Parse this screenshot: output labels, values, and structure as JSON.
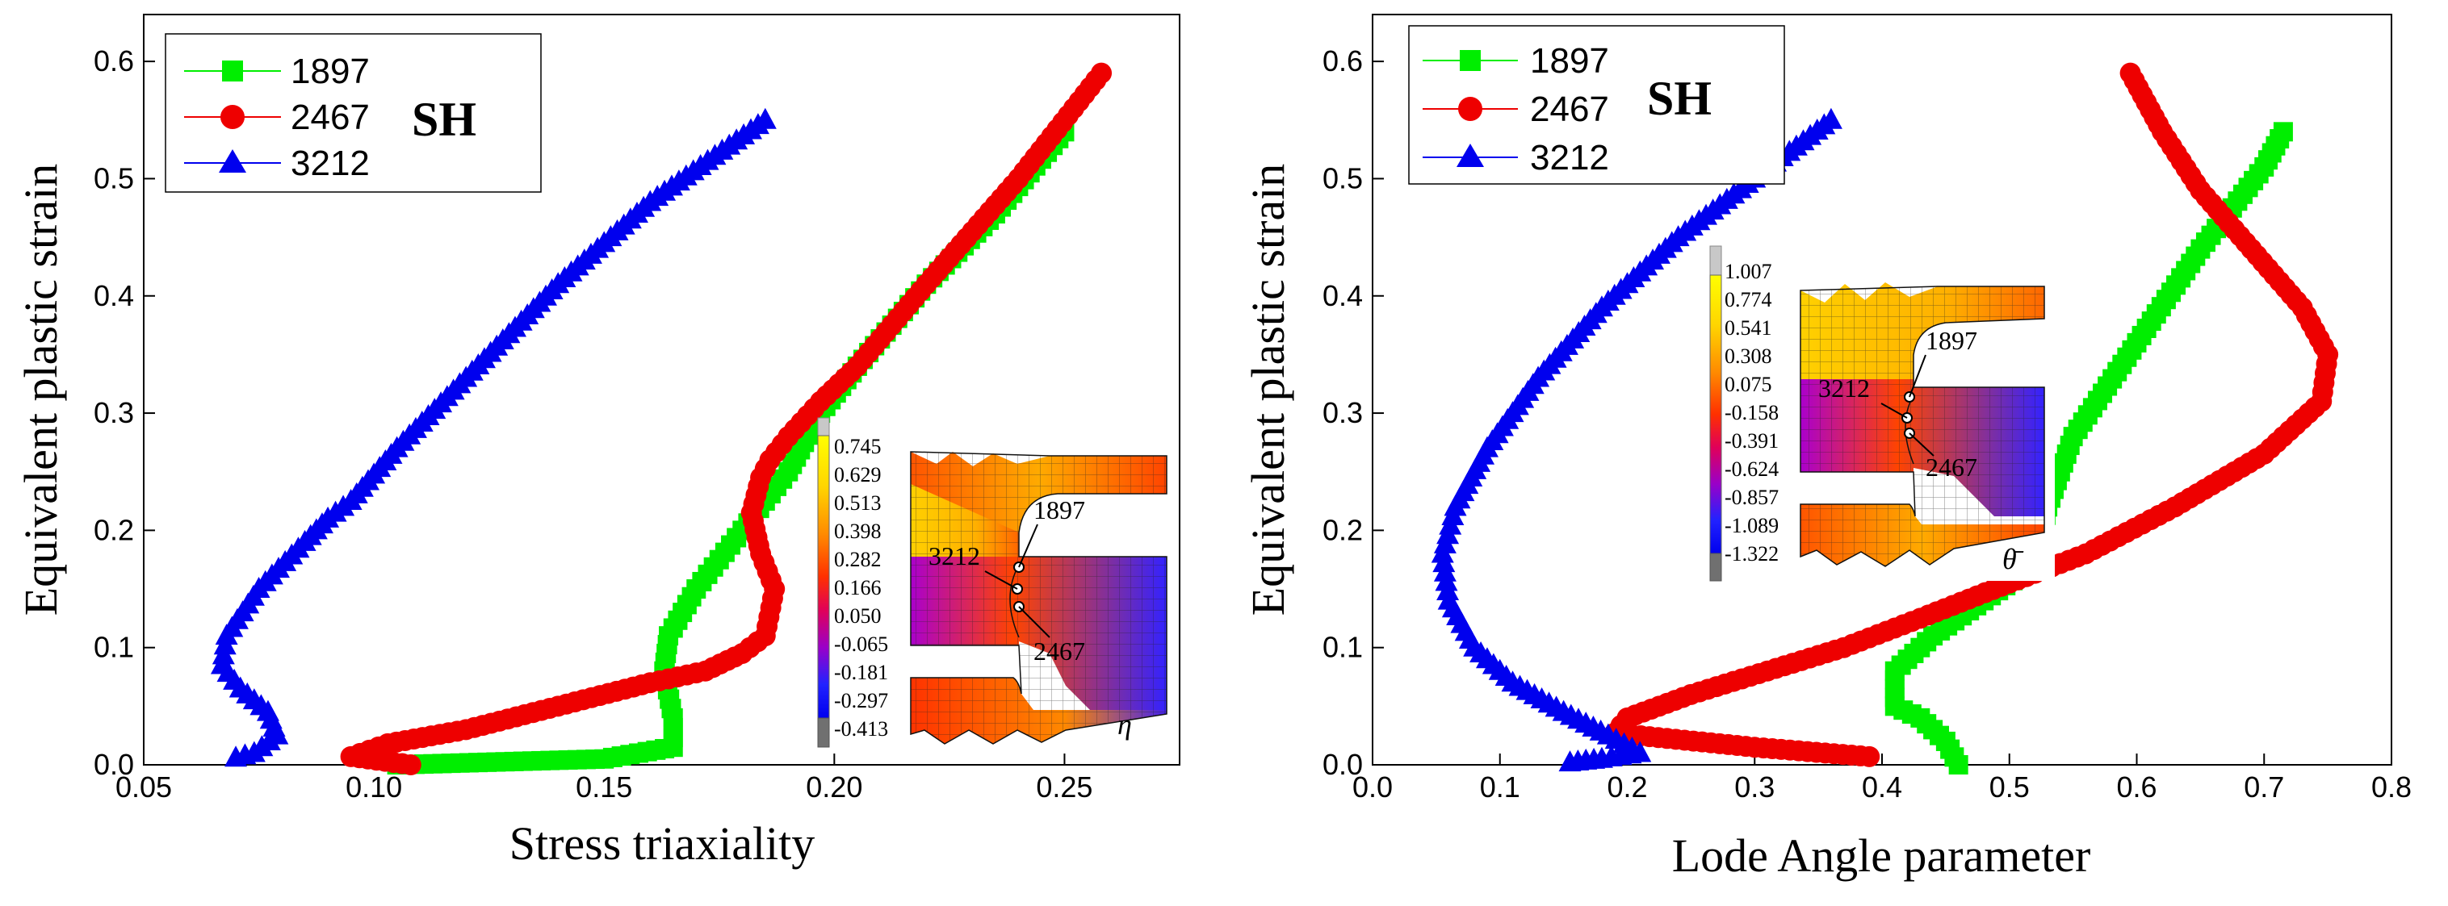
{
  "figure": {
    "series_colors": [
      "#00ee00",
      "#ee0000",
      "#0000ee"
    ]
  },
  "chart_data": [
    {
      "type": "scatter",
      "title": "",
      "annotation": "SH",
      "xlabel": "Stress triaxiality",
      "ylabel": "Equivalent plastic strain",
      "xlim": [
        0.05,
        0.275
      ],
      "ylim": [
        0.0,
        0.64
      ],
      "xticks": [
        "0.05",
        "0.10",
        "0.15",
        "0.20",
        "0.25"
      ],
      "xtick_values": [
        0.05,
        0.1,
        0.15,
        0.2,
        0.25
      ],
      "yticks": [
        "0.0",
        "0.1",
        "0.2",
        "0.3",
        "0.4",
        "0.5",
        "0.6"
      ],
      "ytick_values": [
        0.0,
        0.1,
        0.2,
        0.3,
        0.4,
        0.5,
        0.6
      ],
      "legend_position": "top-left",
      "series": [
        {
          "name": "1897",
          "marker": "square",
          "color": "#00ee00",
          "x": [
            0.105,
            0.15,
            0.165,
            0.165,
            0.163,
            0.164,
            0.17,
            0.18,
            0.19,
            0.197,
            0.205,
            0.22,
            0.235,
            0.25
          ],
          "y": [
            0.0,
            0.005,
            0.015,
            0.04,
            0.08,
            0.11,
            0.15,
            0.2,
            0.25,
            0.3,
            0.34,
            0.41,
            0.47,
            0.54
          ]
        },
        {
          "name": "2467",
          "marker": "circle",
          "color": "#ee0000",
          "x": [
            0.108,
            0.095,
            0.103,
            0.12,
            0.14,
            0.16,
            0.172,
            0.18,
            0.185,
            0.187,
            0.184,
            0.182,
            0.184,
            0.186,
            0.19,
            0.197,
            0.205,
            0.22,
            0.24,
            0.258
          ],
          "y": [
            0.0,
            0.007,
            0.018,
            0.03,
            0.05,
            0.07,
            0.08,
            0.095,
            0.11,
            0.15,
            0.18,
            0.215,
            0.245,
            0.26,
            0.28,
            0.31,
            0.34,
            0.41,
            0.5,
            0.59
          ]
        },
        {
          "name": "3212",
          "marker": "triangle",
          "color": "#0000ee",
          "x": [
            0.07,
            0.074,
            0.079,
            0.077,
            0.071,
            0.067,
            0.068,
            0.075,
            0.085,
            0.09,
            0.095,
            0.105,
            0.12,
            0.14,
            0.16,
            0.185
          ],
          "y": [
            0.006,
            0.01,
            0.025,
            0.045,
            0.065,
            0.085,
            0.11,
            0.15,
            0.19,
            0.21,
            0.225,
            0.27,
            0.33,
            0.41,
            0.48,
            0.55
          ]
        }
      ],
      "inset": {
        "colorbar_labels": [
          "0.745",
          "0.629",
          "0.513",
          "0.398",
          "0.282",
          "0.166",
          "0.050",
          "-0.065",
          "-0.181",
          "-0.297",
          "-0.413"
        ],
        "nodes": [
          "1897",
          "3212",
          "2467"
        ],
        "symbol": "η"
      }
    },
    {
      "type": "scatter",
      "title": "",
      "annotation": "SH",
      "xlabel": "Lode Angle parameter",
      "ylabel": "Equivalent plastic strain",
      "xlim": [
        0.0,
        0.8
      ],
      "ylim": [
        0.0,
        0.64
      ],
      "xticks": [
        "0.0",
        "0.1",
        "0.2",
        "0.3",
        "0.4",
        "0.5",
        "0.6",
        "0.7",
        "0.8"
      ],
      "xtick_values": [
        0.0,
        0.1,
        0.2,
        0.3,
        0.4,
        0.5,
        0.6,
        0.7,
        0.8
      ],
      "yticks": [
        "0.0",
        "0.1",
        "0.2",
        "0.3",
        "0.4",
        "0.5",
        "0.6"
      ],
      "ytick_values": [
        0.0,
        0.1,
        0.2,
        0.3,
        0.4,
        0.5,
        0.6
      ],
      "legend_position": "top-left",
      "series": [
        {
          "name": "1897",
          "marker": "square",
          "color": "#00ee00",
          "x": [
            0.46,
            0.45,
            0.43,
            0.41,
            0.41,
            0.44,
            0.48,
            0.52,
            0.53,
            0.55,
            0.6,
            0.65,
            0.7,
            0.715
          ],
          "y": [
            0.0,
            0.02,
            0.04,
            0.05,
            0.08,
            0.11,
            0.14,
            0.17,
            0.22,
            0.28,
            0.36,
            0.44,
            0.51,
            0.54
          ]
        },
        {
          "name": "2467",
          "marker": "circle",
          "color": "#ee0000",
          "x": [
            0.39,
            0.3,
            0.19,
            0.2,
            0.25,
            0.31,
            0.37,
            0.43,
            0.5,
            0.56,
            0.63,
            0.7,
            0.745,
            0.75,
            0.73,
            0.69,
            0.65,
            0.62,
            0.595
          ],
          "y": [
            0.007,
            0.015,
            0.027,
            0.04,
            0.06,
            0.08,
            0.1,
            0.125,
            0.155,
            0.18,
            0.22,
            0.265,
            0.31,
            0.35,
            0.39,
            0.44,
            0.49,
            0.54,
            0.59
          ]
        },
        {
          "name": "3212",
          "marker": "triangle",
          "color": "#0000ee",
          "x": [
            0.155,
            0.18,
            0.21,
            0.185,
            0.15,
            0.11,
            0.08,
            0.06,
            0.055,
            0.065,
            0.09,
            0.13,
            0.18,
            0.24,
            0.3,
            0.36
          ],
          "y": [
            0.002,
            0.005,
            0.01,
            0.025,
            0.045,
            0.07,
            0.1,
            0.14,
            0.18,
            0.22,
            0.27,
            0.33,
            0.39,
            0.45,
            0.5,
            0.55
          ]
        }
      ],
      "inset": {
        "colorbar_labels": [
          "1.007",
          "0.774",
          "0.541",
          "0.308",
          "0.075",
          "-0.158",
          "-0.391",
          "-0.624",
          "-0.857",
          "-1.089",
          "-1.322"
        ],
        "nodes": [
          "1897",
          "3212",
          "2467"
        ],
        "symbol": "θ̄"
      }
    }
  ]
}
